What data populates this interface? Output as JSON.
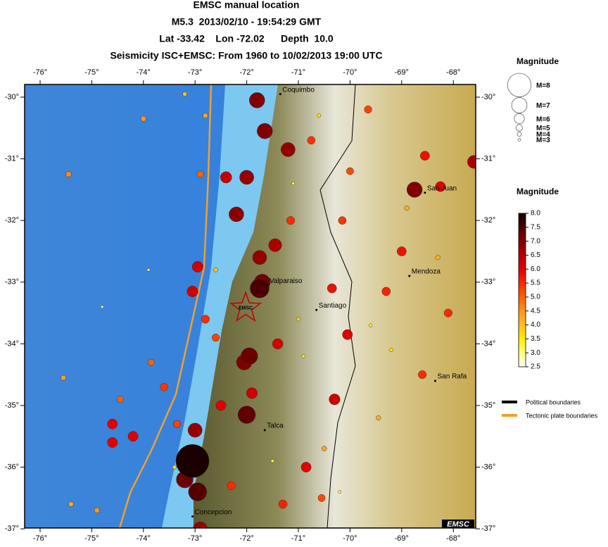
{
  "header": {
    "lines": [
      "EMSC manual location",
      "M5.3  2013/02/10 - 19:54:29 GMT",
      "Lat -33.42    Lon -72.02      Depth  10.0",
      "Seismicity ISC+EMSC: From 1960 to 10/02/2013 19:00 UTC"
    ]
  },
  "map": {
    "lon_ticks": [
      {
        "value": -76,
        "label": "-76°"
      },
      {
        "value": -75,
        "label": "-75°"
      },
      {
        "value": -74,
        "label": "-74°"
      },
      {
        "value": -73,
        "label": "-73°"
      },
      {
        "value": -72,
        "label": "-72°"
      },
      {
        "value": -71,
        "label": "-71°"
      },
      {
        "value": -70,
        "label": "-70°"
      },
      {
        "value": -69,
        "label": "-69°"
      },
      {
        "value": -68,
        "label": "-68°"
      }
    ],
    "lat_ticks": [
      {
        "value": -30,
        "label": "-30°"
      },
      {
        "value": -31,
        "label": "-31°"
      },
      {
        "value": -32,
        "label": "-32°"
      },
      {
        "value": -33,
        "label": "-33°"
      },
      {
        "value": -34,
        "label": "-34°"
      },
      {
        "value": -35,
        "label": "-35°"
      },
      {
        "value": -36,
        "label": "-36°"
      },
      {
        "value": -37,
        "label": "-37°"
      }
    ],
    "cities": [
      {
        "name": "Coquimbo",
        "lon": -71.35,
        "lat": -29.95
      },
      {
        "name": "San Juan",
        "lon": -68.55,
        "lat": -31.55
      },
      {
        "name": "Mendoza",
        "lon": -68.85,
        "lat": -32.9
      },
      {
        "name": "Valparaiso",
        "lon": -71.6,
        "lat": -33.05
      },
      {
        "name": "Santiago",
        "lon": -70.65,
        "lat": -33.45
      },
      {
        "name": "San Rafa",
        "lon": -68.35,
        "lat": -34.6
      },
      {
        "name": "Talca",
        "lon": -71.65,
        "lat": -35.4
      },
      {
        "name": "Concepcion",
        "lon": -73.05,
        "lat": -36.8
      }
    ],
    "epicenter": {
      "label": "EMSC",
      "lon": -72.02,
      "lat": -33.42
    },
    "logo": "EMSC",
    "events": [
      [
        -73.9,
        -32.8,
        3.0
      ],
      [
        -74.8,
        -33.4,
        3.0
      ],
      [
        -70.2,
        -36.4,
        3.2
      ],
      [
        -71.5,
        -35.9,
        3.3
      ],
      [
        -71.1,
        -31.4,
        3.3
      ],
      [
        -69.6,
        -33.7,
        3.4
      ],
      [
        -70.9,
        -34.2,
        3.5
      ],
      [
        -72.1,
        -37.0,
        3.5
      ],
      [
        -70.6,
        -30.3,
        3.6
      ],
      [
        -69.2,
        -34.1,
        3.6
      ],
      [
        -73.4,
        -36.0,
        3.7
      ],
      [
        -71.0,
        -33.6,
        3.8
      ],
      [
        -73.2,
        -29.95,
        4.0
      ],
      [
        -72.6,
        -32.8,
        4.0
      ],
      [
        -68.3,
        -32.6,
        4.1
      ],
      [
        -69.45,
        -35.2,
        4.2
      ],
      [
        -68.9,
        -31.8,
        4.2
      ],
      [
        -72.8,
        -30.3,
        4.3
      ],
      [
        -75.4,
        -36.6,
        4.3
      ],
      [
        -70.5,
        -35.7,
        4.3
      ],
      [
        -75.55,
        -34.55,
        4.4
      ],
      [
        -74.0,
        -30.35,
        4.5
      ],
      [
        -74.9,
        -36.7,
        4.5
      ],
      [
        -75.45,
        -31.25,
        4.6
      ],
      [
        -72.9,
        -31.25,
        5.0
      ],
      [
        -73.85,
        -34.3,
        5.0
      ],
      [
        -74.45,
        -34.9,
        5.0
      ],
      [
        -70.0,
        -31.2,
        5.2
      ],
      [
        -70.55,
        -36.5,
        5.2
      ],
      [
        -72.6,
        -33.9,
        5.3
      ],
      [
        -69.65,
        -30.2,
        5.3
      ],
      [
        -73.35,
        -35.3,
        5.3
      ],
      [
        -70.15,
        -32.0,
        5.4
      ],
      [
        -70.75,
        -30.7,
        5.4
      ],
      [
        -73.6,
        -34.7,
        5.4
      ],
      [
        -72.8,
        -33.6,
        5.5
      ],
      [
        -72.3,
        -36.3,
        5.5
      ],
      [
        -68.6,
        -34.5,
        5.5
      ],
      [
        -68.1,
        -33.5,
        5.5
      ],
      [
        -71.15,
        -32.0,
        5.5
      ],
      [
        -69.3,
        -33.15,
        5.6
      ],
      [
        -71.3,
        -36.6,
        5.6
      ],
      [
        -70.35,
        -33.1,
        5.8
      ],
      [
        -68.55,
        -30.95,
        5.8
      ],
      [
        -69.0,
        -32.5,
        5.8
      ],
      [
        -74.6,
        -35.6,
        6.0
      ],
      [
        -74.2,
        -35.5,
        6.0
      ],
      [
        -74.6,
        -35.3,
        6.0
      ],
      [
        -70.85,
        -36.0,
        6.0
      ],
      [
        -70.05,
        -33.85,
        6.0
      ],
      [
        -68.25,
        -31.45,
        6.0
      ],
      [
        -72.5,
        -35.0,
        6.0
      ],
      [
        -71.4,
        -34.0,
        6.1
      ],
      [
        -72.95,
        -32.75,
        6.2
      ],
      [
        -73.05,
        -33.15,
        6.2
      ],
      [
        -70.3,
        -34.9,
        6.2
      ],
      [
        -71.9,
        -34.8,
        6.2
      ],
      [
        -72.4,
        -31.3,
        6.3
      ],
      [
        -71.45,
        -32.4,
        6.6
      ],
      [
        -67.6,
        -31.05,
        6.6
      ],
      [
        -71.2,
        -30.85,
        6.8
      ],
      [
        -72.0,
        -31.3,
        6.8
      ],
      [
        -73.0,
        -35.4,
        6.8
      ],
      [
        -72.9,
        -37.0,
        6.8
      ],
      [
        -71.75,
        -32.6,
        6.8
      ],
      [
        -72.2,
        -31.9,
        6.9
      ],
      [
        -71.65,
        -30.55,
        7.0
      ],
      [
        -71.8,
        -30.05,
        7.0
      ],
      [
        -68.75,
        -31.5,
        7.0
      ],
      [
        -72.05,
        -34.3,
        7.0
      ],
      [
        -71.7,
        -33.0,
        7.1
      ],
      [
        -71.95,
        -34.2,
        7.2
      ],
      [
        -73.2,
        -36.2,
        7.2
      ],
      [
        -72.0,
        -35.15,
        7.3
      ],
      [
        -72.95,
        -36.4,
        7.4
      ],
      [
        -71.75,
        -33.1,
        7.5
      ],
      [
        -73.05,
        -35.9,
        8.8
      ]
    ]
  },
  "size_legend": {
    "title": "Magnitude",
    "items": [
      {
        "value": 8,
        "label": "M=8"
      },
      {
        "value": 7,
        "label": "M=7"
      },
      {
        "value": 6,
        "label": "M=6"
      },
      {
        "value": 5,
        "label": "M=5"
      },
      {
        "value": 4,
        "label": "M=4"
      },
      {
        "value": 3,
        "label": "M=3"
      }
    ]
  },
  "color_legend": {
    "title": "Magnitude",
    "ticks": [
      {
        "value": 8,
        "label": "8.0"
      },
      {
        "value": 7.5,
        "label": "7.5"
      },
      {
        "value": 7,
        "label": "7.0"
      },
      {
        "value": 6.5,
        "label": "6.5"
      },
      {
        "value": 6,
        "label": "6.0"
      },
      {
        "value": 5.5,
        "label": "5.5"
      },
      {
        "value": 5,
        "label": "5.0"
      },
      {
        "value": 4.5,
        "label": "4.5"
      },
      {
        "value": 4,
        "label": "4.0"
      },
      {
        "value": 3.5,
        "label": "3.5"
      },
      {
        "value": 3,
        "label": "3.0"
      },
      {
        "value": 2.5,
        "label": "2.5"
      }
    ],
    "colors": [
      "#1a0000",
      "#4a0000",
      "#800000",
      "#b40000",
      "#e00000",
      "#ff2a00",
      "#ff6000",
      "#ff9420",
      "#ffc020",
      "#ffee00",
      "#ffff80",
      "#ffffff"
    ]
  },
  "line_legend": [
    {
      "label": "Political boundaries",
      "color": "#000000"
    },
    {
      "label": "Tectonic plate boundaries",
      "color": "#f0a030"
    }
  ]
}
